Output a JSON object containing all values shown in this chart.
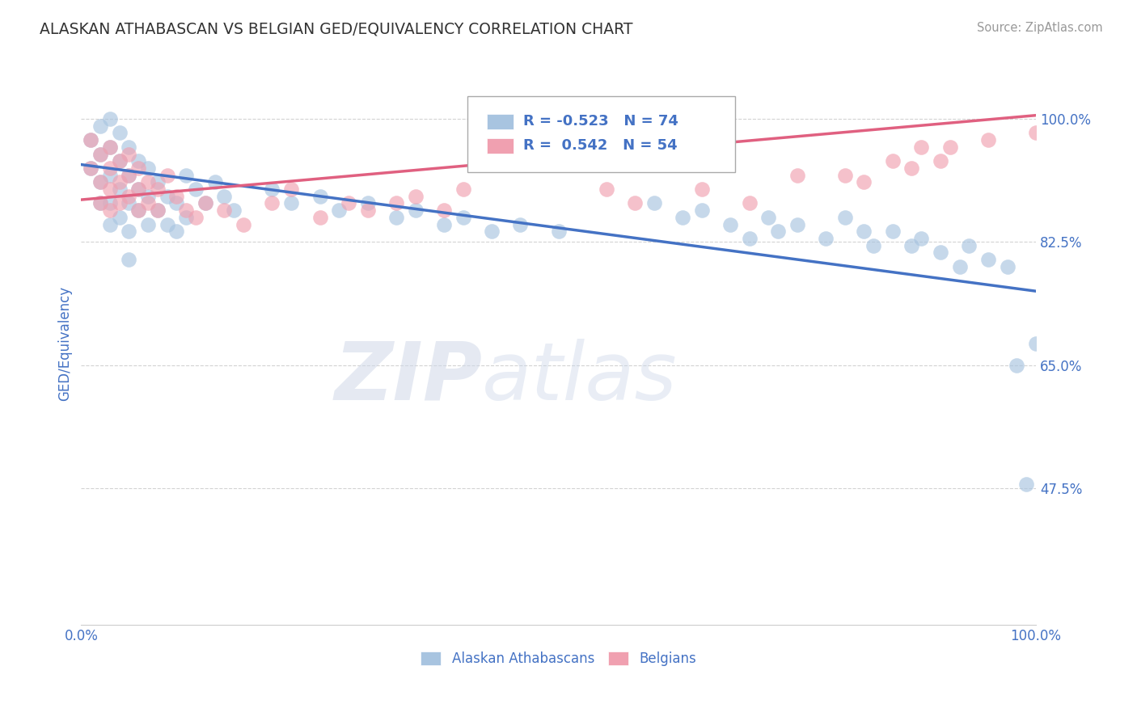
{
  "title": "ALASKAN ATHABASCAN VS BELGIAN GED/EQUIVALENCY CORRELATION CHART",
  "source": "Source: ZipAtlas.com",
  "ylabel": "GED/Equivalency",
  "ytick_labels": [
    "47.5%",
    "65.0%",
    "82.5%",
    "100.0%"
  ],
  "ytick_values": [
    0.475,
    0.65,
    0.825,
    1.0
  ],
  "xlim": [
    0.0,
    1.0
  ],
  "ylim": [
    0.28,
    1.08
  ],
  "blue_label": "Alaskan Athabascans",
  "pink_label": "Belgians",
  "blue_R": -0.523,
  "blue_N": 74,
  "pink_R": 0.542,
  "pink_N": 54,
  "blue_color": "#a8c4e0",
  "pink_color": "#f0a0b0",
  "blue_line_color": "#4472c4",
  "pink_line_color": "#e06080",
  "watermark_zip": "ZIP",
  "watermark_atlas": "atlas",
  "blue_line_x0": 0.0,
  "blue_line_y0": 0.935,
  "blue_line_x1": 1.0,
  "blue_line_y1": 0.755,
  "pink_line_x0": 0.0,
  "pink_line_y0": 0.885,
  "pink_line_x1": 1.0,
  "pink_line_y1": 1.005
}
